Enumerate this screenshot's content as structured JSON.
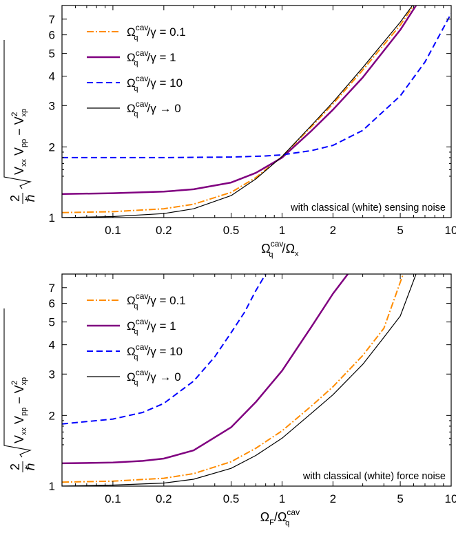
{
  "chart_data": [
    {
      "type": "line",
      "panel": "top",
      "xscale": "log",
      "yscale": "log",
      "xlim": [
        0.05,
        10
      ],
      "ylim": [
        1,
        8
      ],
      "xticks": [
        0.1,
        0.2,
        0.5,
        1,
        2,
        5,
        10
      ],
      "xtick_labels": [
        "0.1",
        "0.2",
        "0.5",
        "1",
        "2",
        "5",
        "10"
      ],
      "yticks": [
        1,
        2,
        3,
        4,
        5,
        6,
        7
      ],
      "ytick_labels": [
        "1",
        "2",
        "3",
        "4",
        "5",
        "6",
        "7"
      ],
      "ylabel": {
        "prefix": "2",
        "hbar": "ℏ",
        "v1": "V",
        "s1": "xx",
        "v2": "V",
        "s2": "pp",
        "minus": "−",
        "v3": "V",
        "p3": "2",
        "s3": "xp"
      },
      "xlabel": {
        "sym1": "Ω",
        "sup1": "cav",
        "sub1": "q",
        "slash": "/",
        "sym2": "Ω",
        "sub2": "x"
      },
      "annotation": "with classical (white) sensing noise",
      "legend_position": "top-left",
      "series": [
        {
          "name": "Ωq^cav/γ = 0.1",
          "legend": {
            "sym": "Ω",
            "sup": "cav",
            "sub": "q",
            "rest": "/γ = 0.1"
          },
          "color": "#ff8c00",
          "style": "dashdot",
          "width": 2,
          "x": [
            0.05,
            0.1,
            0.2,
            0.3,
            0.5,
            0.7,
            1,
            1.5,
            2,
            3,
            5,
            6
          ],
          "y": [
            1.05,
            1.06,
            1.09,
            1.14,
            1.28,
            1.48,
            1.82,
            2.45,
            3.05,
            4.25,
            6.6,
            8.0
          ]
        },
        {
          "name": "Ωq^cav/γ = 1",
          "legend": {
            "sym": "Ω",
            "sup": "cav",
            "sub": "q",
            "rest": "/γ = 1"
          },
          "color": "#800080",
          "style": "solid",
          "width": 2.5,
          "x": [
            0.05,
            0.1,
            0.2,
            0.3,
            0.5,
            0.7,
            1,
            1.5,
            2,
            3,
            5,
            6.2
          ],
          "y": [
            1.26,
            1.27,
            1.29,
            1.32,
            1.41,
            1.55,
            1.8,
            2.35,
            2.88,
            3.95,
            6.3,
            8.0
          ]
        },
        {
          "name": "Ωq^cav/γ = 10",
          "legend": {
            "sym": "Ω",
            "sup": "cav",
            "sub": "q",
            "rest": "/γ = 10"
          },
          "color": "#0000ff",
          "style": "dashed",
          "width": 2,
          "x": [
            0.05,
            0.1,
            0.2,
            0.5,
            0.8,
            1,
            1.5,
            2,
            3,
            5,
            7,
            10
          ],
          "y": [
            1.8,
            1.8,
            1.8,
            1.81,
            1.83,
            1.85,
            1.93,
            2.03,
            2.35,
            3.3,
            4.6,
            7.4
          ]
        },
        {
          "name": "Ωq^cav/γ → 0",
          "legend": {
            "sym": "Ω",
            "sup": "cav",
            "sub": "q",
            "rest": "/γ → 0"
          },
          "color": "#000000",
          "style": "solid",
          "width": 1.2,
          "x": [
            0.05,
            0.1,
            0.2,
            0.3,
            0.5,
            0.7,
            1,
            1.5,
            2,
            3,
            5,
            5.9
          ],
          "y": [
            1.0,
            1.01,
            1.04,
            1.09,
            1.24,
            1.46,
            1.82,
            2.48,
            3.1,
            4.35,
            6.8,
            8.0
          ]
        }
      ]
    },
    {
      "type": "line",
      "panel": "bottom",
      "xscale": "log",
      "yscale": "log",
      "xlim": [
        0.05,
        10
      ],
      "ylim": [
        1,
        8
      ],
      "xticks": [
        0.1,
        0.2,
        0.5,
        1,
        2,
        5,
        10
      ],
      "xtick_labels": [
        "0.1",
        "0.2",
        "0.5",
        "1",
        "2",
        "5",
        "10"
      ],
      "yticks": [
        1,
        2,
        3,
        4,
        5,
        6,
        7
      ],
      "ytick_labels": [
        "1",
        "2",
        "3",
        "4",
        "5",
        "6",
        "7"
      ],
      "ylabel": {
        "prefix": "2",
        "hbar": "ℏ",
        "v1": "V",
        "s1": "xx",
        "v2": "V",
        "s2": "pp",
        "minus": "−",
        "v3": "V",
        "p3": "2",
        "s3": "xp"
      },
      "xlabel": {
        "sym1": "Ω",
        "sub1": "F",
        "slash": "/",
        "sym2": "Ω",
        "sup2": "cav",
        "sub2": "q"
      },
      "annotation": "with classical (white) force noise",
      "legend_position": "top-left",
      "series": [
        {
          "name": "Ωq^cav/γ = 0.1",
          "legend": {
            "sym": "Ω",
            "sup": "cav",
            "sub": "q",
            "rest": "/γ = 0.1"
          },
          "color": "#ff8c00",
          "style": "dashdot",
          "width": 2,
          "x": [
            0.05,
            0.1,
            0.2,
            0.3,
            0.5,
            0.7,
            1,
            1.5,
            2,
            3,
            4,
            5.2
          ],
          "y": [
            1.04,
            1.05,
            1.08,
            1.13,
            1.27,
            1.45,
            1.72,
            2.2,
            2.65,
            3.6,
            4.7,
            8.0
          ]
        },
        {
          "name": "Ωq^cav/γ = 1",
          "legend": {
            "sym": "Ω",
            "sup": "cav",
            "sub": "q",
            "rest": "/γ = 1"
          },
          "color": "#800080",
          "style": "solid",
          "width": 2.5,
          "x": [
            0.05,
            0.1,
            0.15,
            0.2,
            0.3,
            0.5,
            0.7,
            1,
            1.5,
            2,
            2.45
          ],
          "y": [
            1.25,
            1.26,
            1.28,
            1.31,
            1.42,
            1.78,
            2.28,
            3.1,
            4.8,
            6.6,
            8.0
          ]
        },
        {
          "name": "Ωq^cav/γ = 10",
          "legend": {
            "sym": "Ω",
            "sup": "cav",
            "sub": "q",
            "rest": "/γ = 10"
          },
          "color": "#0000ff",
          "style": "dashed",
          "width": 2,
          "x": [
            0.05,
            0.1,
            0.15,
            0.2,
            0.3,
            0.4,
            0.5,
            0.6,
            0.7,
            0.8
          ],
          "y": [
            1.84,
            1.93,
            2.06,
            2.25,
            2.8,
            3.55,
            4.5,
            5.5,
            6.8,
            8.0
          ]
        },
        {
          "name": "Ωq^cav/γ → 0",
          "legend": {
            "sym": "Ω",
            "sup": "cav",
            "sub": "q",
            "rest": "/γ → 0"
          },
          "color": "#000000",
          "style": "solid",
          "width": 1.2,
          "x": [
            0.05,
            0.1,
            0.2,
            0.3,
            0.5,
            0.7,
            1,
            1.5,
            2,
            3,
            4,
            5,
            6.2
          ],
          "y": [
            1.0,
            1.01,
            1.03,
            1.07,
            1.19,
            1.35,
            1.6,
            2.05,
            2.45,
            3.3,
            4.3,
            5.3,
            8.0
          ]
        }
      ]
    }
  ]
}
